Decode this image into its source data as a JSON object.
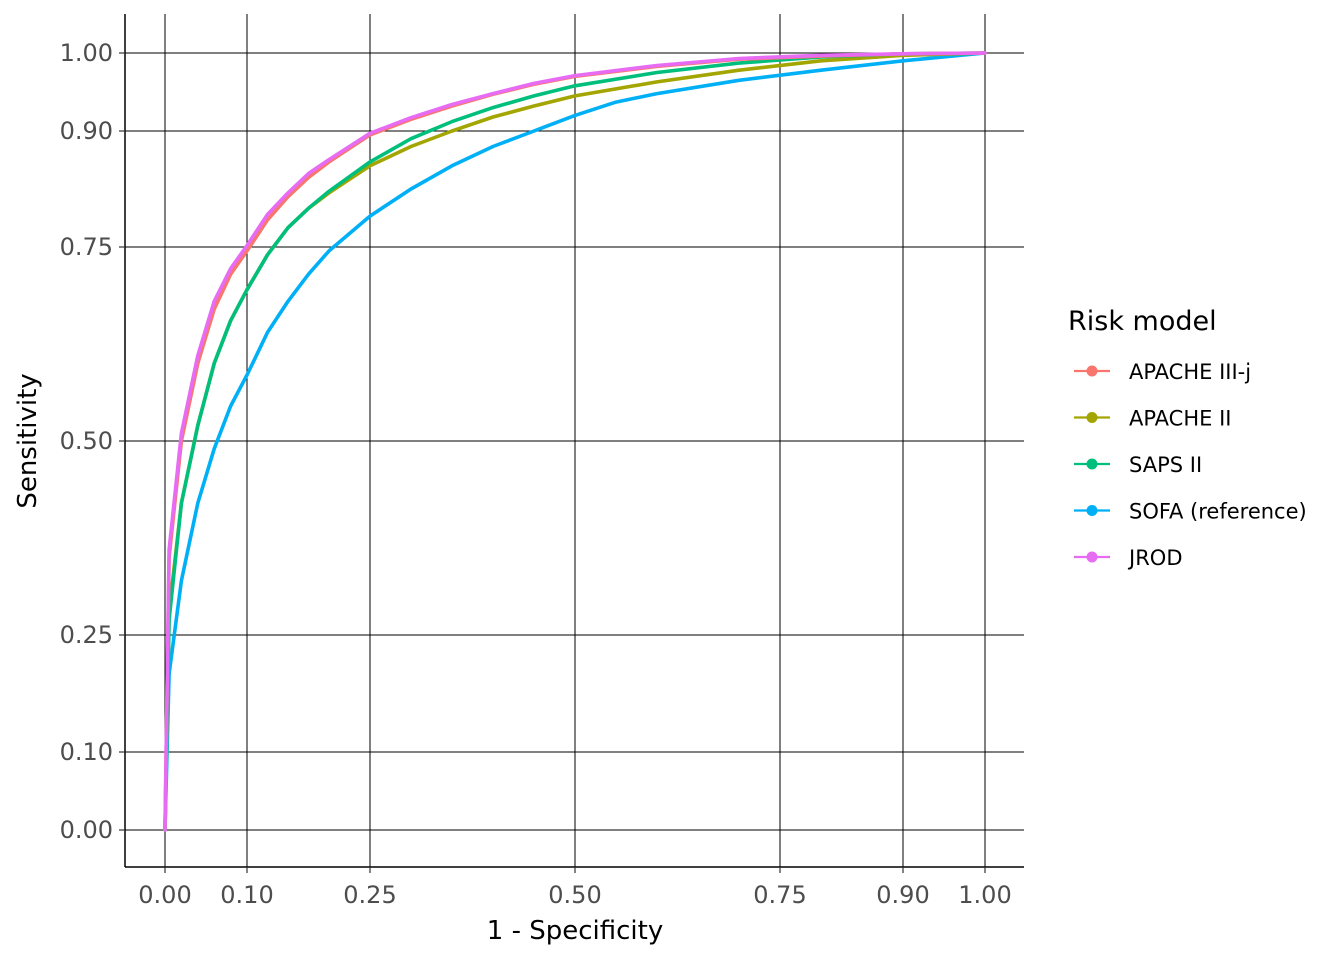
{
  "chart_data": {
    "type": "line",
    "xlabel": "1 - Specificity",
    "ylabel": "Sensitivity",
    "xlim": [
      0,
      1
    ],
    "ylim": [
      0,
      1
    ],
    "scale": "sqrt-like (ticks at 0, 0.10, 0.25, 0.50, 0.75, 0.90, 1.00)",
    "grid": true,
    "x_ticks": [
      {
        "value": 0.0,
        "label": "0.00"
      },
      {
        "value": 0.1,
        "label": "0.10"
      },
      {
        "value": 0.25,
        "label": "0.25"
      },
      {
        "value": 0.5,
        "label": "0.50"
      },
      {
        "value": 0.75,
        "label": "0.75"
      },
      {
        "value": 0.9,
        "label": "0.90"
      },
      {
        "value": 1.0,
        "label": "1.00"
      }
    ],
    "y_ticks": [
      {
        "value": 0.0,
        "label": "0.00"
      },
      {
        "value": 0.1,
        "label": "0.10"
      },
      {
        "value": 0.25,
        "label": "0.25"
      },
      {
        "value": 0.5,
        "label": "0.50"
      },
      {
        "value": 0.75,
        "label": "0.75"
      },
      {
        "value": 0.9,
        "label": "0.90"
      },
      {
        "value": 1.0,
        "label": "1.00"
      }
    ],
    "legend": {
      "title": "Risk model",
      "position": "right"
    },
    "series": [
      {
        "name": "APACHE III-j",
        "color": "#F8766D",
        "x": [
          0,
          0.005,
          0.02,
          0.04,
          0.06,
          0.08,
          0.1,
          0.125,
          0.15,
          0.175,
          0.2,
          0.25,
          0.3,
          0.35,
          0.4,
          0.45,
          0.5,
          0.6,
          0.7,
          0.8,
          0.9,
          1.0
        ],
        "y": [
          0,
          0.35,
          0.5,
          0.6,
          0.67,
          0.715,
          0.745,
          0.785,
          0.815,
          0.84,
          0.86,
          0.895,
          0.915,
          0.932,
          0.947,
          0.96,
          0.97,
          0.983,
          0.992,
          0.996,
          0.999,
          1.0
        ]
      },
      {
        "name": "APACHE II",
        "color": "#A3A500",
        "x": [
          0,
          0.005,
          0.02,
          0.04,
          0.06,
          0.08,
          0.1,
          0.125,
          0.15,
          0.175,
          0.2,
          0.25,
          0.3,
          0.35,
          0.4,
          0.45,
          0.5,
          0.6,
          0.7,
          0.8,
          0.9,
          1.0
        ],
        "y": [
          0,
          0.28,
          0.42,
          0.52,
          0.6,
          0.655,
          0.695,
          0.74,
          0.775,
          0.8,
          0.82,
          0.855,
          0.88,
          0.9,
          0.918,
          0.932,
          0.945,
          0.963,
          0.978,
          0.99,
          0.997,
          1.0
        ]
      },
      {
        "name": "SAPS II",
        "color": "#00BF7D",
        "x": [
          0,
          0.005,
          0.02,
          0.04,
          0.06,
          0.08,
          0.1,
          0.125,
          0.15,
          0.175,
          0.2,
          0.25,
          0.3,
          0.35,
          0.4,
          0.45,
          0.5,
          0.6,
          0.7,
          0.8,
          0.9,
          1.0
        ],
        "y": [
          0,
          0.27,
          0.42,
          0.52,
          0.6,
          0.655,
          0.695,
          0.74,
          0.775,
          0.8,
          0.822,
          0.86,
          0.89,
          0.912,
          0.93,
          0.945,
          0.958,
          0.975,
          0.987,
          0.995,
          0.999,
          1.0
        ]
      },
      {
        "name": "SOFA (reference)",
        "color": "#00B0F6",
        "x": [
          0,
          0.005,
          0.02,
          0.04,
          0.06,
          0.08,
          0.1,
          0.125,
          0.15,
          0.175,
          0.2,
          0.25,
          0.3,
          0.35,
          0.4,
          0.45,
          0.5,
          0.55,
          0.6,
          0.7,
          0.8,
          0.9,
          1.0
        ],
        "y": [
          0,
          0.2,
          0.32,
          0.42,
          0.49,
          0.545,
          0.585,
          0.64,
          0.68,
          0.715,
          0.745,
          0.79,
          0.825,
          0.855,
          0.88,
          0.9,
          0.92,
          0.937,
          0.948,
          0.965,
          0.978,
          0.99,
          1.0
        ]
      },
      {
        "name": "JROD",
        "color": "#E76BF3",
        "x": [
          0,
          0.005,
          0.02,
          0.04,
          0.06,
          0.08,
          0.1,
          0.125,
          0.15,
          0.175,
          0.2,
          0.25,
          0.3,
          0.35,
          0.4,
          0.45,
          0.5,
          0.6,
          0.7,
          0.8,
          0.9,
          1.0
        ],
        "y": [
          0,
          0.36,
          0.51,
          0.61,
          0.68,
          0.722,
          0.752,
          0.792,
          0.82,
          0.845,
          0.863,
          0.897,
          0.917,
          0.934,
          0.948,
          0.961,
          0.971,
          0.984,
          0.993,
          0.997,
          0.999,
          1.0
        ]
      }
    ]
  }
}
